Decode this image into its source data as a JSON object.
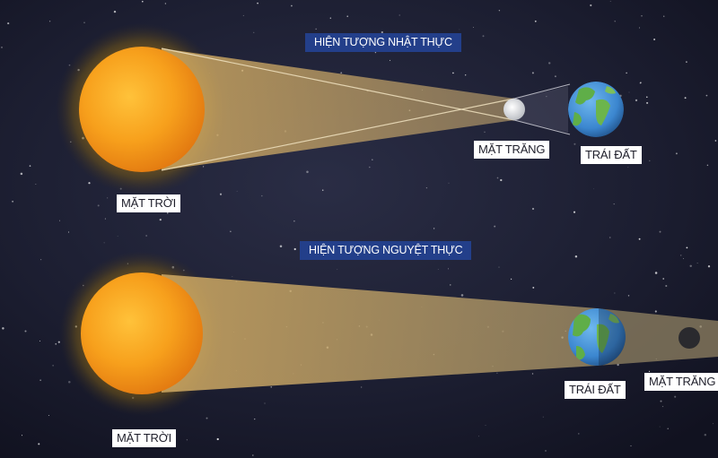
{
  "solar_eclipse": {
    "title": "HIỆN TƯỢNG NHẬT THỰC",
    "sun_label": "MẶT TRỜI",
    "moon_label": "MẶT TRĂNG",
    "earth_label": "TRÁI ĐẤT"
  },
  "lunar_eclipse": {
    "title": "HIỆN TƯỢNG NGUYỆT THỰC",
    "sun_label": "MẶT TRỜI",
    "earth_label": "TRÁI ĐẤT",
    "moon_label": "MẶT TRĂNG"
  },
  "colors": {
    "space": "#161827",
    "sun": "#f5a01a",
    "light_beam": "#c9a86a",
    "earth_ocean": "#3f8fd6",
    "earth_land": "#5fb04a",
    "title_bg": "#233f8a"
  }
}
